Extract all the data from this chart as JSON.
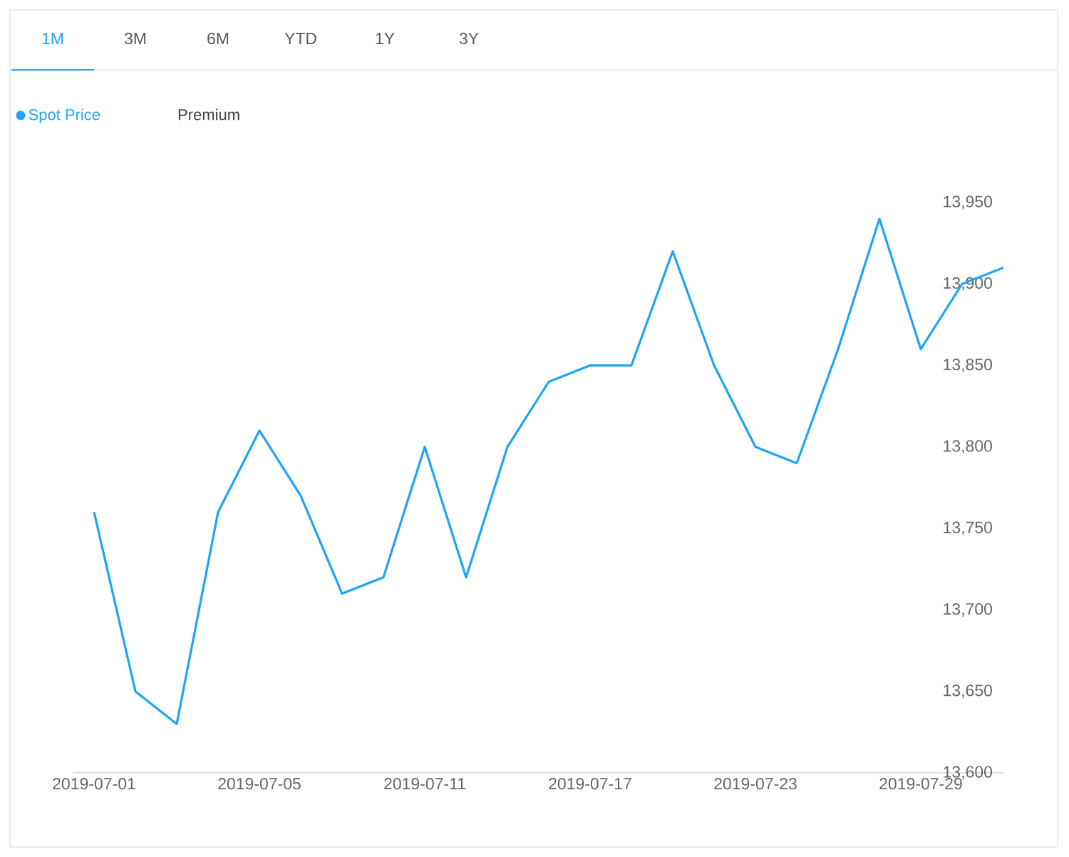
{
  "chart_data": {
    "type": "line",
    "categories": [
      "2019-07-01",
      null,
      null,
      null,
      "2019-07-05",
      null,
      null,
      null,
      "2019-07-11",
      null,
      null,
      null,
      "2019-07-17",
      null,
      null,
      null,
      "2019-07-23",
      null,
      null,
      null,
      "2019-07-29",
      null,
      null
    ],
    "series": [
      {
        "name": "Spot Price",
        "color": "#1ea4f7",
        "values": [
          13760,
          13650,
          13630,
          13760,
          13810,
          13770,
          13710,
          13720,
          13800,
          13720,
          13800,
          13840,
          13850,
          13850,
          13920,
          13850,
          13800,
          13790,
          13860,
          13940,
          13860,
          13900,
          13910
        ]
      },
      {
        "name": "Premium",
        "values": [
          null,
          null,
          null,
          null,
          null,
          null,
          null,
          null,
          null,
          null,
          null,
          null,
          null,
          null,
          null,
          null,
          null,
          null,
          null,
          null,
          null,
          null,
          null
        ]
      }
    ],
    "ylim": [
      13600,
      13950
    ],
    "yticks": [
      {
        "value": 13600,
        "label": "13,600"
      },
      {
        "value": 13650,
        "label": "13,650"
      },
      {
        "value": 13700,
        "label": "13,700"
      },
      {
        "value": 13750,
        "label": "13,750"
      },
      {
        "value": 13800,
        "label": "13,800"
      },
      {
        "value": 13850,
        "label": "13,850"
      },
      {
        "value": 13900,
        "label": "13,900"
      },
      {
        "value": 13950,
        "label": "13,950"
      }
    ],
    "grid": false,
    "legend": "top left",
    "marker": "none",
    "line_style": "solid",
    "annotations": [
      "1M",
      "3M",
      "6M",
      "YTD",
      "1Y",
      "3Y"
    ]
  }
}
